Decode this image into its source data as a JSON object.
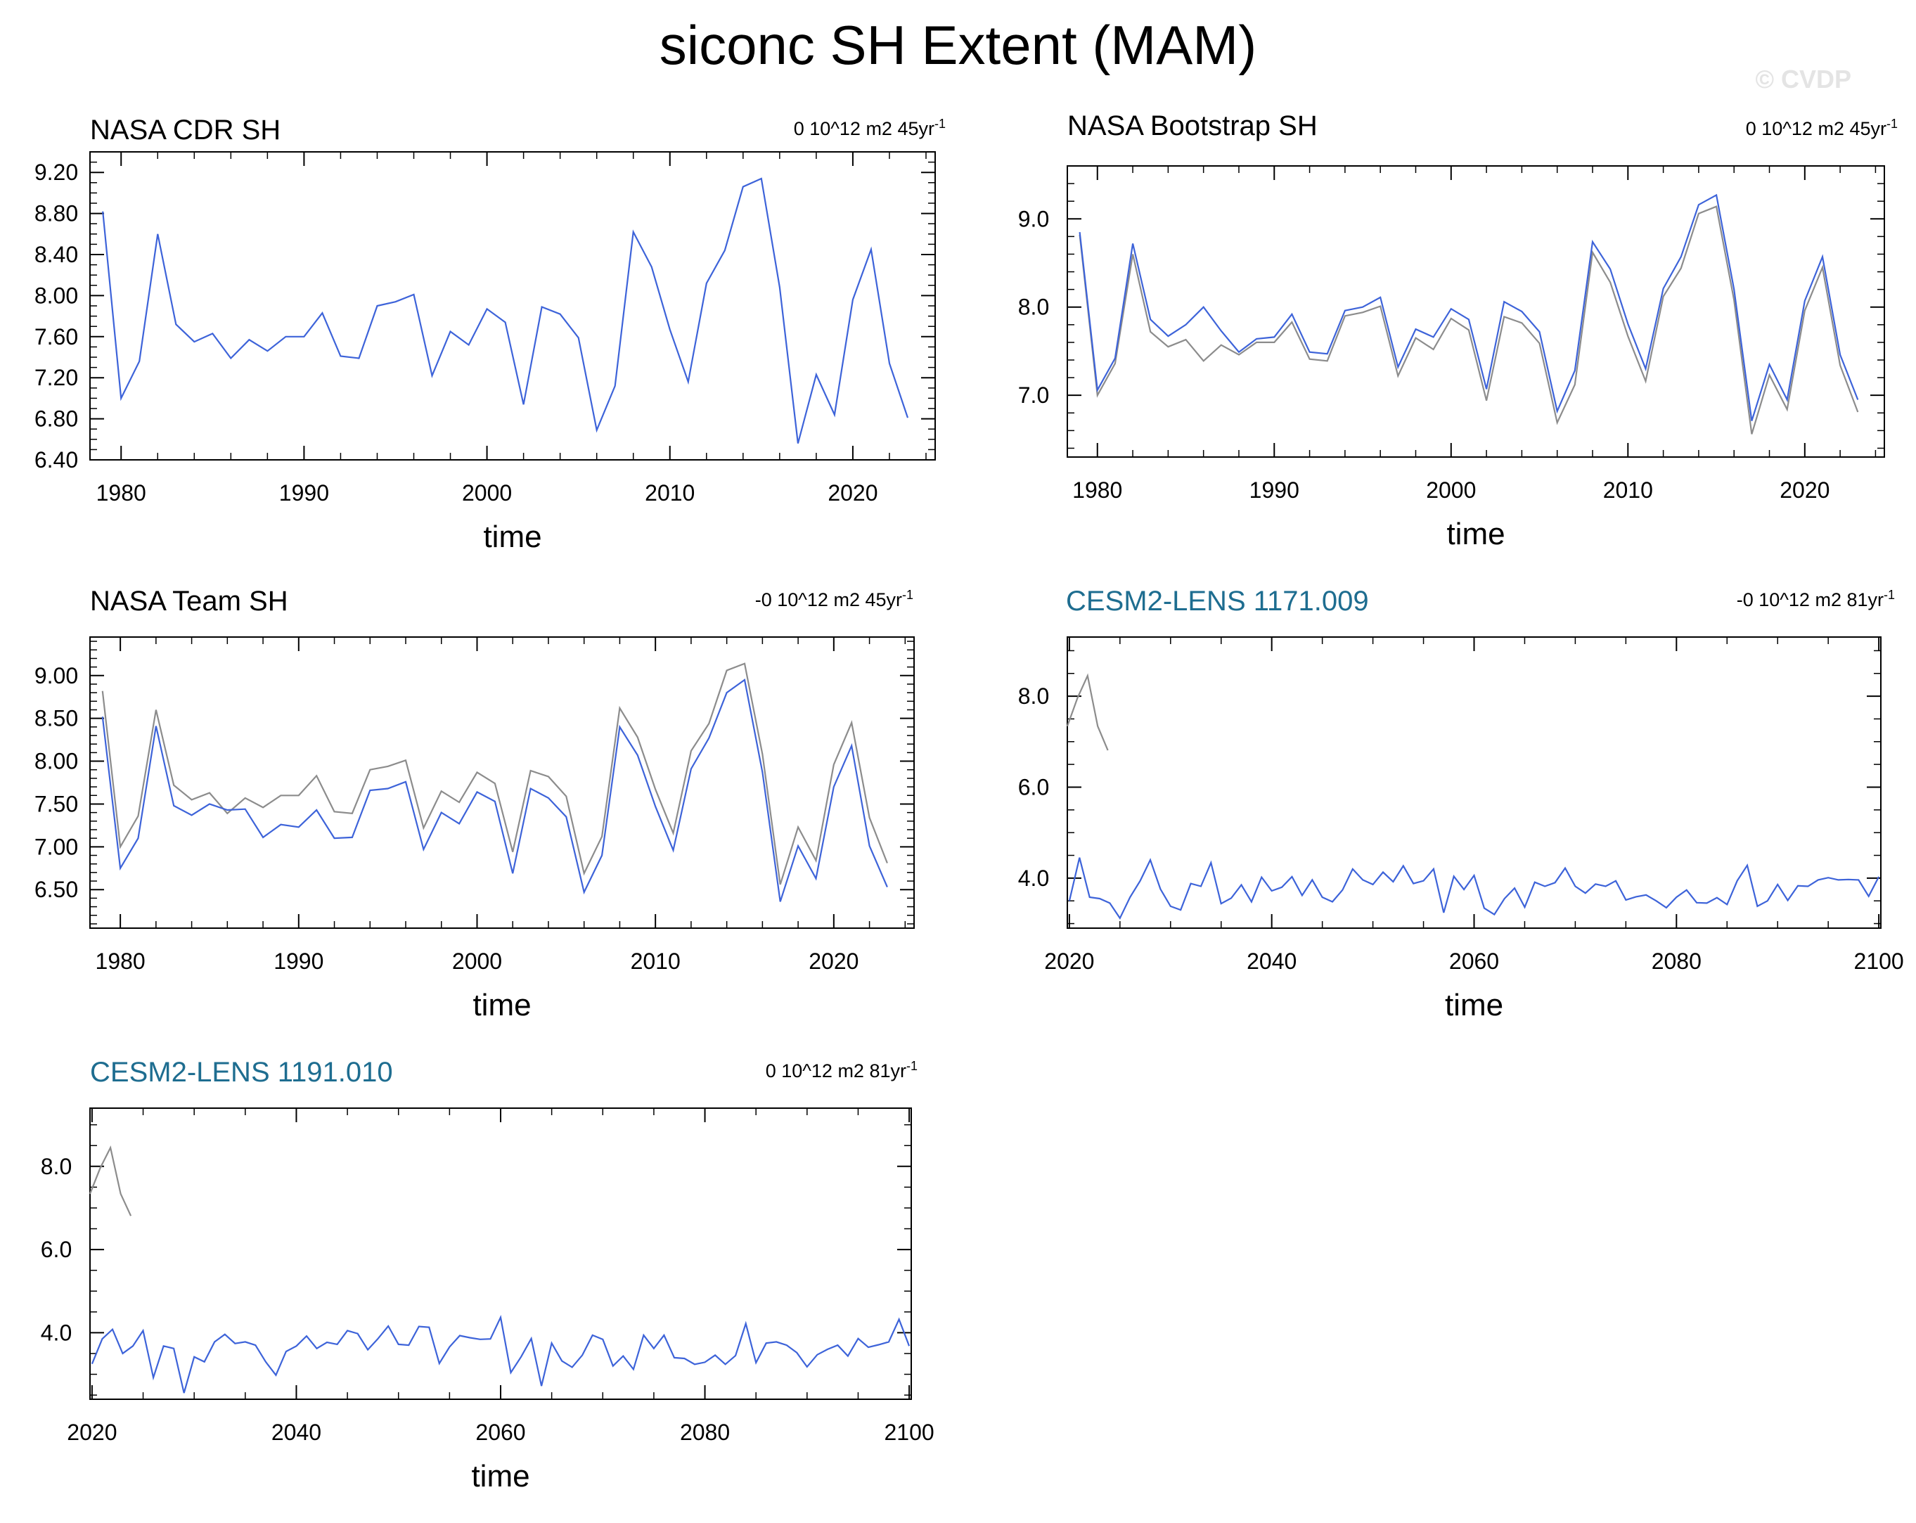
{
  "title": "siconc SH Extent (MAM)",
  "watermark": "© CVDP",
  "colors": {
    "primary": "#3d63d9",
    "reference": "#8c8c8c",
    "model_title": "#1e6d90",
    "axis": "#000000"
  },
  "panels": [
    {
      "title": "NASA CDR SH",
      "title_kind": "obs",
      "trend": "0 10^12 m2 45yr",
      "trend_sup": "-1",
      "chart_data": {
        "type": "line",
        "xlabel": "time",
        "ylabel": "",
        "xlim": [
          1978.3,
          2024.5
        ],
        "ylim": [
          6.4,
          9.4
        ],
        "xticks": [
          1980,
          1990,
          2000,
          2010,
          2020
        ],
        "xtick_labels": [
          "1980",
          "1990",
          "2000",
          "2010",
          "2020"
        ],
        "yticks": [
          6.4,
          6.8,
          7.2,
          7.6,
          8.0,
          8.4,
          8.8,
          9.2
        ],
        "ytick_labels": [
          "6.40",
          "6.80",
          "7.20",
          "7.60",
          "8.00",
          "8.40",
          "8.80",
          "9.20"
        ],
        "x_minor": 2,
        "y_minor": 0.1,
        "series": [
          {
            "name": "NASA CDR SH",
            "role": "primary",
            "x_start": 1979,
            "values": [
              8.82,
              7.0,
              7.36,
              8.6,
              7.72,
              7.55,
              7.63,
              7.39,
              7.57,
              7.46,
              7.6,
              7.6,
              7.83,
              7.41,
              7.39,
              7.9,
              7.94,
              8.01,
              7.22,
              7.65,
              7.52,
              7.87,
              7.74,
              6.94,
              7.89,
              7.82,
              7.59,
              6.69,
              7.12,
              8.62,
              8.28,
              7.67,
              7.16,
              8.12,
              8.44,
              9.06,
              9.14,
              8.08,
              6.56,
              7.23,
              6.84,
              7.96,
              8.45,
              7.34,
              6.81
            ]
          }
        ]
      }
    },
    {
      "title": "NASA Bootstrap SH",
      "title_kind": "obs",
      "trend": "0 10^12 m2 45yr",
      "trend_sup": "-1",
      "chart_data": {
        "type": "line",
        "xlabel": "time",
        "ylabel": "",
        "xlim": [
          1978.3,
          2024.5
        ],
        "ylim": [
          6.3,
          9.6
        ],
        "xticks": [
          1980,
          1990,
          2000,
          2010,
          2020
        ],
        "xtick_labels": [
          "1980",
          "1990",
          "2000",
          "2010",
          "2020"
        ],
        "yticks": [
          7.0,
          8.0,
          9.0
        ],
        "ytick_labels": [
          "7.0",
          "8.0",
          "9.0"
        ],
        "x_minor": 2,
        "y_minor": 0.2,
        "series": [
          {
            "name": "NASA CDR SH",
            "role": "reference",
            "x_start": 1979,
            "values": [
              8.82,
              7.0,
              7.36,
              8.6,
              7.72,
              7.55,
              7.63,
              7.39,
              7.57,
              7.46,
              7.6,
              7.6,
              7.83,
              7.41,
              7.39,
              7.9,
              7.94,
              8.01,
              7.22,
              7.65,
              7.52,
              7.87,
              7.74,
              6.94,
              7.89,
              7.82,
              7.59,
              6.69,
              7.12,
              8.62,
              8.28,
              7.67,
              7.16,
              8.12,
              8.44,
              9.06,
              9.14,
              8.08,
              6.56,
              7.23,
              6.84,
              7.96,
              8.45,
              7.34,
              6.81
            ]
          },
          {
            "name": "NASA Bootstrap SH",
            "role": "primary",
            "x_start": 1979,
            "values": [
              8.85,
              7.06,
              7.42,
              8.72,
              7.86,
              7.67,
              7.8,
              8.0,
              7.73,
              7.49,
              7.64,
              7.66,
              7.92,
              7.49,
              7.47,
              7.96,
              8.0,
              8.11,
              7.32,
              7.75,
              7.66,
              7.98,
              7.86,
              7.07,
              8.06,
              7.95,
              7.72,
              6.82,
              7.28,
              8.74,
              8.43,
              7.81,
              7.3,
              8.21,
              8.57,
              9.16,
              9.27,
              8.2,
              6.71,
              7.35,
              6.95,
              8.07,
              8.57,
              7.46,
              6.95
            ]
          }
        ]
      }
    },
    {
      "title": "NASA Team SH",
      "title_kind": "obs",
      "trend": "-0 10^12 m2 45yr",
      "trend_sup": "-1",
      "chart_data": {
        "type": "line",
        "xlabel": "time",
        "ylabel": "",
        "xlim": [
          1978.3,
          2024.5
        ],
        "ylim": [
          6.05,
          9.45
        ],
        "xticks": [
          1980,
          1990,
          2000,
          2010,
          2020
        ],
        "xtick_labels": [
          "1980",
          "1990",
          "2000",
          "2010",
          "2020"
        ],
        "yticks": [
          6.5,
          7.0,
          7.5,
          8.0,
          8.5,
          9.0
        ],
        "ytick_labels": [
          "6.50",
          "7.00",
          "7.50",
          "8.00",
          "8.50",
          "9.00"
        ],
        "x_minor": 2,
        "y_minor": 0.1,
        "series": [
          {
            "name": "NASA CDR SH",
            "role": "reference",
            "x_start": 1979,
            "values": [
              8.82,
              7.0,
              7.36,
              8.6,
              7.72,
              7.55,
              7.63,
              7.39,
              7.57,
              7.46,
              7.6,
              7.6,
              7.83,
              7.41,
              7.39,
              7.9,
              7.94,
              8.01,
              7.22,
              7.65,
              7.52,
              7.87,
              7.74,
              6.94,
              7.89,
              7.82,
              7.59,
              6.69,
              7.12,
              8.62,
              8.28,
              7.67,
              7.16,
              8.12,
              8.44,
              9.06,
              9.14,
              8.08,
              6.56,
              7.23,
              6.84,
              7.96,
              8.45,
              7.34,
              6.81
            ]
          },
          {
            "name": "NASA Team SH",
            "role": "primary",
            "x_start": 1979,
            "values": [
              8.52,
              6.75,
              7.1,
              8.41,
              7.48,
              7.37,
              7.5,
              7.43,
              7.44,
              7.11,
              7.26,
              7.23,
              7.43,
              7.1,
              7.11,
              7.66,
              7.68,
              7.76,
              6.97,
              7.4,
              7.27,
              7.64,
              7.53,
              6.69,
              7.68,
              7.57,
              7.35,
              6.47,
              6.9,
              8.4,
              8.07,
              7.47,
              6.96,
              7.91,
              8.27,
              8.8,
              8.95,
              7.87,
              6.36,
              7.01,
              6.63,
              7.7,
              8.18,
              7.01,
              6.53
            ]
          }
        ]
      }
    },
    {
      "title": "CESM2-LENS 1171.009",
      "title_kind": "model",
      "trend": "-0 10^12 m2 81yr",
      "trend_sup": "-1",
      "chart_data": {
        "type": "line",
        "xlabel": "time",
        "ylabel": "",
        "xlim": [
          2019.8,
          2100.2
        ],
        "ylim": [
          2.9,
          9.3
        ],
        "xticks": [
          2020,
          2040,
          2060,
          2080,
          2100
        ],
        "xtick_labels": [
          "2020",
          "2040",
          "2060",
          "2080",
          "2100"
        ],
        "yticks": [
          4.0,
          6.0,
          8.0
        ],
        "ytick_labels": [
          "4.0",
          "6.0",
          "8.0"
        ],
        "x_minor": 5,
        "y_minor": 0.5,
        "series": [
          {
            "name": "NASA CDR SH",
            "role": "reference",
            "x_start": 2019.8,
            "values": [
              7.34,
              7.96,
              8.45,
              7.34,
              6.81
            ]
          },
          {
            "name": "CESM2-LENS 1171.009",
            "role": "primary",
            "x_start": 2020,
            "values": [
              3.5,
              4.45,
              3.58,
              3.55,
              3.45,
              3.12,
              3.58,
              3.94,
              4.4,
              3.76,
              3.38,
              3.3,
              3.88,
              3.82,
              4.34,
              3.44,
              3.56,
              3.85,
              3.48,
              4.02,
              3.72,
              3.8,
              4.03,
              3.62,
              3.96,
              3.58,
              3.48,
              3.74,
              4.2,
              3.96,
              3.86,
              4.13,
              3.92,
              4.27,
              3.88,
              3.94,
              4.2,
              3.24,
              4.04,
              3.75,
              4.06,
              3.34,
              3.2,
              3.55,
              3.78,
              3.36,
              3.91,
              3.82,
              3.9,
              4.22,
              3.82,
              3.67,
              3.87,
              3.82,
              3.94,
              3.52,
              3.59,
              3.63,
              3.5,
              3.35,
              3.58,
              3.74,
              3.46,
              3.45,
              3.57,
              3.42,
              3.94,
              4.28,
              3.38,
              3.5,
              3.86,
              3.51,
              3.83,
              3.82,
              3.96,
              4.01,
              3.96,
              3.97,
              3.96,
              3.6,
              4.03
            ]
          }
        ]
      }
    },
    {
      "title": "CESM2-LENS 1191.010",
      "title_kind": "model",
      "trend": "0 10^12 m2 81yr",
      "trend_sup": "-1",
      "chart_data": {
        "type": "line",
        "xlabel": "time",
        "ylabel": "",
        "xlim": [
          2019.8,
          2100.2
        ],
        "ylim": [
          2.4,
          9.4
        ],
        "xticks": [
          2020,
          2040,
          2060,
          2080,
          2100
        ],
        "xtick_labels": [
          "2020",
          "2040",
          "2060",
          "2080",
          "2100"
        ],
        "yticks": [
          4.0,
          6.0,
          8.0
        ],
        "ytick_labels": [
          "4.0",
          "6.0",
          "8.0"
        ],
        "x_minor": 5,
        "y_minor": 0.5,
        "series": [
          {
            "name": "NASA CDR SH",
            "role": "reference",
            "x_start": 2019.8,
            "values": [
              7.34,
              7.96,
              8.45,
              7.34,
              6.81
            ]
          },
          {
            "name": "CESM2-LENS 1191.010",
            "role": "primary",
            "x_start": 2020,
            "values": [
              3.25,
              3.85,
              4.08,
              3.5,
              3.68,
              4.05,
              2.92,
              3.68,
              3.62,
              2.55,
              3.42,
              3.3,
              3.78,
              3.96,
              3.74,
              3.78,
              3.7,
              3.3,
              2.98,
              3.55,
              3.68,
              3.92,
              3.62,
              3.77,
              3.72,
              4.05,
              3.98,
              3.59,
              3.86,
              4.16,
              3.72,
              3.7,
              4.15,
              4.13,
              3.26,
              3.66,
              3.93,
              3.88,
              3.84,
              3.85,
              4.37,
              3.04,
              3.42,
              3.86,
              2.72,
              3.75,
              3.32,
              3.17,
              3.46,
              3.94,
              3.84,
              3.2,
              3.44,
              3.12,
              3.94,
              3.62,
              3.94,
              3.4,
              3.38,
              3.24,
              3.29,
              3.46,
              3.24,
              3.45,
              4.22,
              3.28,
              3.75,
              3.78,
              3.7,
              3.52,
              3.18,
              3.47,
              3.6,
              3.7,
              3.44,
              3.86,
              3.65,
              3.71,
              3.78,
              4.32,
              3.68
            ]
          }
        ]
      }
    }
  ]
}
